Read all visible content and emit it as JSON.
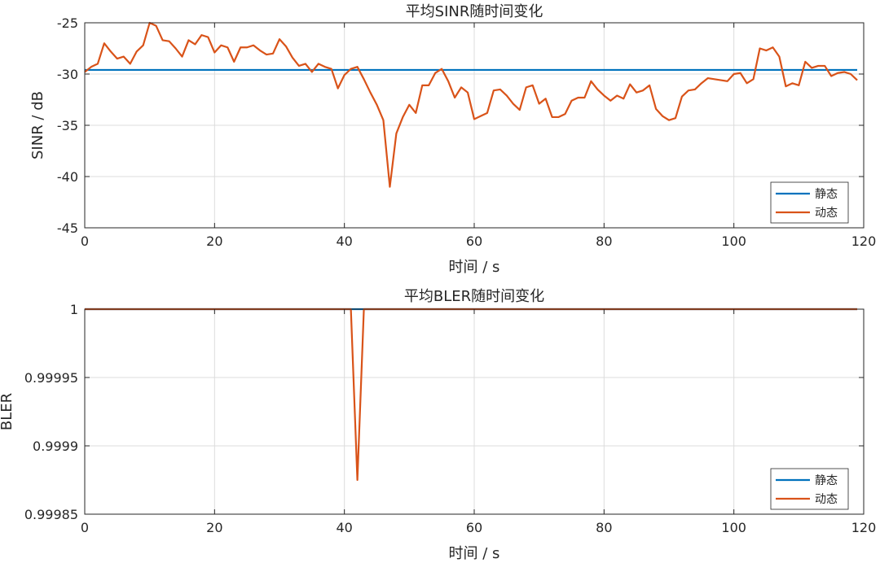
{
  "colors": {
    "static": "#0072BD",
    "dynamic": "#D95319",
    "grid": "#dcdcdc",
    "axes": "#262626"
  },
  "chart_data": [
    {
      "type": "line",
      "title": "平均SINR随时间变化",
      "xlabel": "时间 / s",
      "ylabel": "SINR / dB",
      "xlim": [
        0,
        120
      ],
      "ylim": [
        -45,
        -25
      ],
      "xticks": [
        0,
        20,
        40,
        60,
        80,
        100,
        120
      ],
      "yticks": [
        -45,
        -40,
        -35,
        -30,
        -25
      ],
      "grid": true,
      "legend_position": "bottom-right",
      "series": [
        {
          "name": "静态",
          "color": "#0072BD",
          "x": [
            0,
            119
          ],
          "values": [
            -29.6,
            -29.6
          ]
        },
        {
          "name": "动态",
          "color": "#D95319",
          "x": [
            0,
            1,
            2,
            3,
            4,
            5,
            6,
            7,
            8,
            9,
            10,
            11,
            12,
            13,
            14,
            15,
            16,
            17,
            18,
            19,
            20,
            21,
            22,
            23,
            24,
            25,
            26,
            27,
            28,
            29,
            30,
            31,
            32,
            33,
            34,
            35,
            36,
            37,
            38,
            39,
            40,
            41,
            42,
            43,
            44,
            45,
            46,
            47,
            48,
            49,
            50,
            51,
            52,
            53,
            54,
            55,
            56,
            57,
            58,
            59,
            60,
            61,
            62,
            63,
            64,
            65,
            66,
            67,
            68,
            69,
            70,
            71,
            72,
            73,
            74,
            75,
            76,
            77,
            78,
            79,
            80,
            81,
            82,
            83,
            84,
            85,
            86,
            87,
            88,
            89,
            90,
            91,
            92,
            93,
            94,
            95,
            96,
            97,
            98,
            99,
            100,
            101,
            102,
            103,
            104,
            105,
            106,
            107,
            108,
            109,
            110,
            111,
            112,
            113,
            114,
            115,
            116,
            117,
            118,
            119
          ],
          "values": [
            -29.8,
            -29.3,
            -29.0,
            -27.0,
            -27.8,
            -28.5,
            -28.3,
            -29.0,
            -27.8,
            -27.2,
            -25.0,
            -25.3,
            -26.7,
            -26.8,
            -27.5,
            -28.3,
            -26.7,
            -27.1,
            -26.2,
            -26.4,
            -27.9,
            -27.2,
            -27.4,
            -28.8,
            -27.4,
            -27.4,
            -27.2,
            -27.7,
            -28.1,
            -28.0,
            -26.6,
            -27.3,
            -28.4,
            -29.2,
            -29.0,
            -29.8,
            -29.0,
            -29.3,
            -29.5,
            -31.4,
            -30.1,
            -29.5,
            -29.3,
            -30.5,
            -31.8,
            -33.0,
            -34.5,
            -41.0,
            -35.8,
            -34.2,
            -33.0,
            -33.8,
            -31.1,
            -31.1,
            -29.9,
            -29.5,
            -30.7,
            -32.3,
            -31.3,
            -31.8,
            -34.4,
            -34.1,
            -33.8,
            -31.6,
            -31.5,
            -32.1,
            -32.9,
            -33.5,
            -31.3,
            -31.1,
            -32.9,
            -32.4,
            -34.2,
            -34.2,
            -33.9,
            -32.6,
            -32.3,
            -32.3,
            -30.7,
            -31.5,
            -32.1,
            -32.6,
            -32.1,
            -32.4,
            -31.0,
            -31.8,
            -31.6,
            -31.1,
            -33.4,
            -34.1,
            -34.5,
            -34.3,
            -32.2,
            -31.6,
            -31.5,
            -30.9,
            -30.4,
            -30.5,
            -30.6,
            -30.7,
            -30.0,
            -29.9,
            -30.9,
            -30.5,
            -27.5,
            -27.7,
            -27.4,
            -28.3,
            -31.2,
            -30.9,
            -31.1,
            -28.8,
            -29.4,
            -29.2,
            -29.2,
            -30.2,
            -29.9,
            -29.8,
            -30.0,
            -30.6
          ]
        }
      ]
    },
    {
      "type": "line",
      "title": "平均BLER随时间变化",
      "xlabel": "时间 / s",
      "ylabel": "BLER",
      "xlim": [
        0,
        120
      ],
      "ylim": [
        0.99985,
        1.0
      ],
      "xticks": [
        0,
        20,
        40,
        60,
        80,
        100,
        120
      ],
      "yticks": [
        0.99985,
        0.9999,
        0.99995,
        1
      ],
      "ytick_labels": [
        "0.99985",
        "0.9999",
        "0.99995",
        "1"
      ],
      "grid": true,
      "legend_position": "bottom-right",
      "series": [
        {
          "name": "静态",
          "color": "#0072BD",
          "x": [
            0,
            41,
            42,
            43,
            119
          ],
          "values": [
            1,
            1,
            1,
            1,
            1
          ]
        },
        {
          "name": "动态",
          "color": "#D95319",
          "x": [
            0,
            41,
            42,
            43,
            119
          ],
          "values": [
            1,
            1,
            0.999875,
            1,
            1
          ]
        }
      ]
    }
  ]
}
